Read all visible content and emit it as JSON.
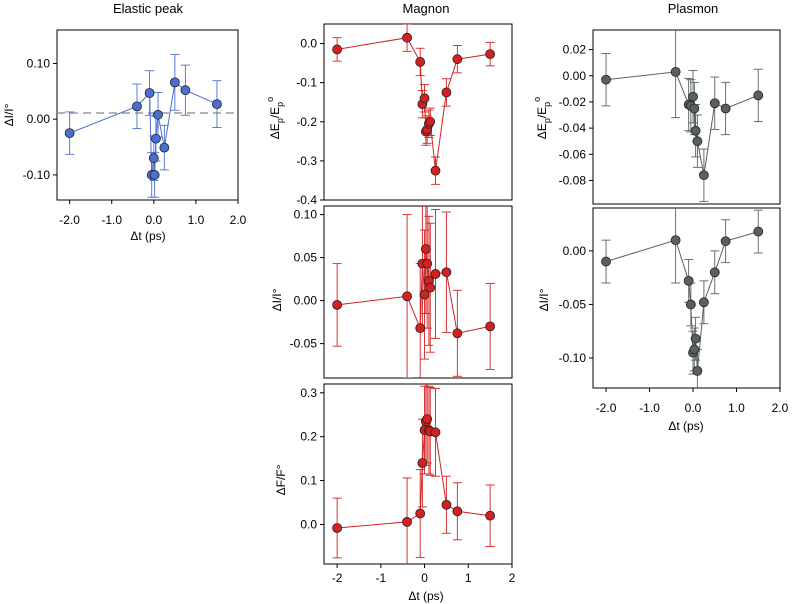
{
  "chart_data": [
    {
      "id": "elastic",
      "type": "scatter",
      "title": "Elastic peak",
      "xlabel": "Δt (ps)",
      "ylabel": "ΔI/I°",
      "xlim": [
        -2.3,
        2.0
      ],
      "ylim": [
        -0.145,
        0.16
      ],
      "xticks": [
        -2.0,
        -1.0,
        0.0,
        1.0,
        2.0
      ],
      "xtick_labels": [
        "-2.0",
        "-1.0",
        "0.0",
        "1.0",
        "2.0"
      ],
      "yticks": [
        -0.1,
        0.0,
        0.1
      ],
      "ytick_labels": [
        "-0.10",
        "0.00",
        "0.10"
      ],
      "color": "#4a6fd0",
      "zero_line": true,
      "points": [
        {
          "x": -2.0,
          "y": -0.025,
          "err": 0.038
        },
        {
          "x": -0.4,
          "y": 0.023,
          "err": 0.04
        },
        {
          "x": -0.1,
          "y": 0.047,
          "err": 0.04
        },
        {
          "x": -0.05,
          "y": -0.1,
          "err": 0.04
        },
        {
          "x": 0.0,
          "y": -0.07,
          "err": 0.04
        },
        {
          "x": 0.02,
          "y": -0.1,
          "err": 0.04
        },
        {
          "x": 0.05,
          "y": -0.035,
          "err": 0.04
        },
        {
          "x": 0.1,
          "y": 0.008,
          "err": 0.04
        },
        {
          "x": 0.25,
          "y": -0.051,
          "err": 0.04
        },
        {
          "x": 0.5,
          "y": 0.066,
          "err": 0.05
        },
        {
          "x": 0.75,
          "y": 0.052,
          "err": 0.045
        },
        {
          "x": 1.5,
          "y": 0.027,
          "err": 0.042
        }
      ]
    },
    {
      "id": "magnon_energy",
      "type": "scatter",
      "title": "Magnon",
      "xlabel": "",
      "ylabel": "ΔEp/Ep°",
      "xlim": [
        -2.3,
        2.0
      ],
      "ylim": [
        -0.4,
        0.05
      ],
      "xticks": [],
      "xtick_labels": [],
      "yticks": [
        0.0,
        -0.1,
        -0.2,
        -0.3,
        -0.4
      ],
      "ytick_labels": [
        "0.0",
        "-0.1",
        "-0.2",
        "-0.3",
        "-0.4"
      ],
      "color": "#d42020",
      "points": [
        {
          "x": -2.0,
          "y": -0.015,
          "err": 0.03
        },
        {
          "x": -0.4,
          "y": 0.015,
          "err": 0.035
        },
        {
          "x": -0.1,
          "y": -0.047,
          "err": 0.035
        },
        {
          "x": -0.05,
          "y": -0.155,
          "err": 0.035
        },
        {
          "x": 0.0,
          "y": -0.14,
          "err": 0.035
        },
        {
          "x": 0.03,
          "y": -0.225,
          "err": 0.035
        },
        {
          "x": 0.06,
          "y": -0.22,
          "err": 0.035
        },
        {
          "x": 0.1,
          "y": -0.205,
          "err": 0.035
        },
        {
          "x": 0.13,
          "y": -0.2,
          "err": 0.035
        },
        {
          "x": 0.25,
          "y": -0.325,
          "err": 0.035
        },
        {
          "x": 0.5,
          "y": -0.125,
          "err": 0.035
        },
        {
          "x": 0.75,
          "y": -0.04,
          "err": 0.035
        },
        {
          "x": 1.5,
          "y": -0.027,
          "err": 0.03
        }
      ]
    },
    {
      "id": "magnon_intensity",
      "type": "scatter",
      "title": "",
      "xlabel": "",
      "ylabel": "ΔI/I°",
      "xlim": [
        -2.3,
        2.0
      ],
      "ylim": [
        -0.09,
        0.11
      ],
      "xticks": [],
      "xtick_labels": [],
      "yticks": [
        0.1,
        0.05,
        0.0,
        -0.05
      ],
      "ytick_labels": [
        "0.10",
        "0.05",
        "0.00",
        "-0.05"
      ],
      "color": "#d42020",
      "points": [
        {
          "x": -2.0,
          "y": -0.005,
          "err": 0.048
        },
        {
          "x": -0.4,
          "y": 0.005,
          "err": 0.095
        },
        {
          "x": -0.1,
          "y": -0.032,
          "err": 0.075
        },
        {
          "x": -0.05,
          "y": 0.043,
          "err": 0.075
        },
        {
          "x": 0.0,
          "y": 0.007,
          "err": 0.075
        },
        {
          "x": 0.03,
          "y": 0.06,
          "err": 0.075
        },
        {
          "x": 0.06,
          "y": 0.043,
          "err": 0.075
        },
        {
          "x": 0.1,
          "y": 0.023,
          "err": 0.075
        },
        {
          "x": 0.13,
          "y": 0.015,
          "err": 0.075
        },
        {
          "x": 0.25,
          "y": 0.031,
          "err": 0.075
        },
        {
          "x": 0.5,
          "y": 0.033,
          "err": 0.07
        },
        {
          "x": 0.75,
          "y": -0.038,
          "err": 0.05
        },
        {
          "x": 1.5,
          "y": -0.03,
          "err": 0.05
        }
      ]
    },
    {
      "id": "magnon_width",
      "type": "scatter",
      "title": "",
      "xlabel": "Δt (ps)",
      "ylabel": "ΔF/F°",
      "xlim": [
        -2.3,
        2.0
      ],
      "ylim": [
        -0.09,
        0.32
      ],
      "xticks": [
        -2,
        -1,
        0,
        1,
        2
      ],
      "xtick_labels": [
        "-2",
        "-1",
        "0",
        "1",
        "2"
      ],
      "yticks": [
        0.3,
        0.2,
        0.1,
        0.0
      ],
      "ytick_labels": [
        "0.3",
        "0.2",
        "0.1",
        "0.0"
      ],
      "color": "#d42020",
      "points": [
        {
          "x": -2.0,
          "y": -0.008,
          "err": 0.068
        },
        {
          "x": -0.4,
          "y": 0.006,
          "err": 0.1
        },
        {
          "x": -0.1,
          "y": 0.025,
          "err": 0.1
        },
        {
          "x": -0.05,
          "y": 0.14,
          "err": 0.1
        },
        {
          "x": 0.0,
          "y": 0.215,
          "err": 0.1
        },
        {
          "x": 0.03,
          "y": 0.235,
          "err": 0.1
        },
        {
          "x": 0.06,
          "y": 0.24,
          "err": 0.1
        },
        {
          "x": 0.1,
          "y": 0.215,
          "err": 0.1
        },
        {
          "x": 0.13,
          "y": 0.212,
          "err": 0.1
        },
        {
          "x": 0.25,
          "y": 0.21,
          "err": 0.1
        },
        {
          "x": 0.5,
          "y": 0.045,
          "err": 0.065
        },
        {
          "x": 0.75,
          "y": 0.03,
          "err": 0.065
        },
        {
          "x": 1.5,
          "y": 0.02,
          "err": 0.07
        }
      ]
    },
    {
      "id": "plasmon_energy",
      "type": "scatter",
      "title": "Plasmon",
      "xlabel": "",
      "ylabel": "ΔEp/Ep°",
      "xlim": [
        -2.3,
        2.0
      ],
      "ylim": [
        -0.098,
        0.035
      ],
      "xticks": [],
      "xtick_labels": [],
      "yticks": [
        0.02,
        0.0,
        -0.02,
        -0.04,
        -0.06,
        -0.08
      ],
      "ytick_labels": [
        "0.02",
        "0.00",
        "-0.02",
        "-0.04",
        "-0.06",
        "-0.08"
      ],
      "color": "#5a6060",
      "points": [
        {
          "x": -2.0,
          "y": -0.003,
          "err": 0.02
        },
        {
          "x": -0.4,
          "y": 0.003,
          "err": 0.035
        },
        {
          "x": -0.1,
          "y": -0.022,
          "err": 0.02
        },
        {
          "x": -0.05,
          "y": -0.023,
          "err": 0.02
        },
        {
          "x": 0.0,
          "y": -0.016,
          "err": 0.02
        },
        {
          "x": 0.03,
          "y": -0.025,
          "err": 0.02
        },
        {
          "x": 0.06,
          "y": -0.042,
          "err": 0.02
        },
        {
          "x": 0.1,
          "y": -0.05,
          "err": 0.02
        },
        {
          "x": 0.25,
          "y": -0.076,
          "err": 0.02
        },
        {
          "x": 0.5,
          "y": -0.021,
          "err": 0.02
        },
        {
          "x": 0.75,
          "y": -0.025,
          "err": 0.02
        },
        {
          "x": 1.5,
          "y": -0.015,
          "err": 0.02
        }
      ]
    },
    {
      "id": "plasmon_intensity",
      "type": "scatter",
      "title": "",
      "xlabel": "Δt (ps)",
      "ylabel": "ΔI/I°",
      "xlim": [
        -2.3,
        2.0
      ],
      "ylim": [
        -0.128,
        0.04
      ],
      "xticks": [
        -2.0,
        -1.0,
        0.0,
        1.0,
        2.0
      ],
      "xtick_labels": [
        "-2.0",
        "-1.0",
        "0.0",
        "1.0",
        "2.0"
      ],
      "yticks": [
        0.0,
        -0.05,
        -0.1
      ],
      "ytick_labels": [
        "0.00",
        "-0.05",
        "-0.10"
      ],
      "color": "#5a6060",
      "points": [
        {
          "x": -2.0,
          "y": -0.01,
          "err": 0.02
        },
        {
          "x": -0.4,
          "y": 0.01,
          "err": 0.04
        },
        {
          "x": -0.1,
          "y": -0.028,
          "err": 0.02
        },
        {
          "x": -0.05,
          "y": -0.05,
          "err": 0.02
        },
        {
          "x": 0.0,
          "y": -0.095,
          "err": 0.02
        },
        {
          "x": 0.03,
          "y": -0.092,
          "err": 0.02
        },
        {
          "x": 0.06,
          "y": -0.082,
          "err": 0.02
        },
        {
          "x": 0.1,
          "y": -0.112,
          "err": 0.02
        },
        {
          "x": 0.25,
          "y": -0.048,
          "err": 0.02
        },
        {
          "x": 0.5,
          "y": -0.02,
          "err": 0.02
        },
        {
          "x": 0.75,
          "y": 0.009,
          "err": 0.02
        },
        {
          "x": 1.5,
          "y": 0.018,
          "err": 0.02
        }
      ]
    }
  ]
}
